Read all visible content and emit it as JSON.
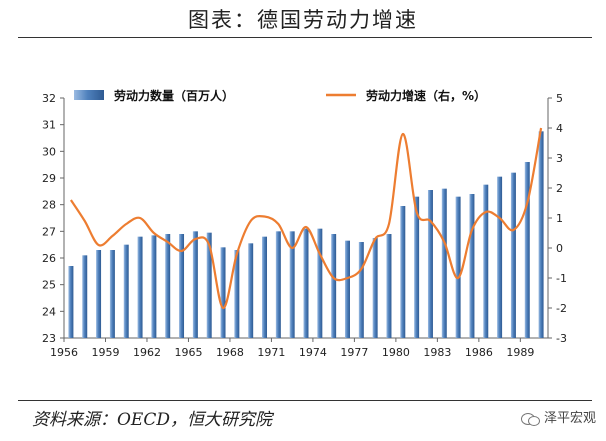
{
  "title": "图表：德国劳动力增速",
  "source": "资料来源：OECD，恒大研究院",
  "watermark": "泽平宏观",
  "chart_data": {
    "type": "bar+line",
    "years": [
      1956,
      1957,
      1958,
      1959,
      1960,
      1961,
      1962,
      1963,
      1964,
      1965,
      1966,
      1967,
      1968,
      1969,
      1970,
      1971,
      1972,
      1973,
      1974,
      1975,
      1976,
      1977,
      1978,
      1979,
      1980,
      1981,
      1982,
      1983,
      1984,
      1985,
      1986,
      1987,
      1988,
      1989,
      1990
    ],
    "x_tick_labels": [
      "1956",
      "1959",
      "1962",
      "1965",
      "1968",
      "1971",
      "1974",
      "1977",
      "1980",
      "1983",
      "1986",
      "1989"
    ],
    "series": [
      {
        "name": "劳动力数量（百万人）",
        "type": "bar",
        "axis": "left",
        "color": "#4f81bd",
        "values": [
          25.7,
          26.1,
          26.3,
          26.3,
          26.5,
          26.8,
          26.85,
          26.9,
          26.9,
          27.0,
          26.95,
          26.4,
          26.3,
          26.55,
          26.8,
          27.0,
          27.0,
          27.1,
          27.1,
          26.9,
          26.65,
          26.6,
          26.75,
          26.9,
          27.95,
          28.3,
          28.55,
          28.6,
          28.3,
          28.4,
          28.75,
          29.05,
          29.2,
          29.6,
          30.75
        ]
      },
      {
        "name": "劳动力增速（右，%）",
        "type": "line",
        "axis": "right",
        "color": "#ed7d31",
        "values": [
          1.6,
          0.9,
          0.1,
          0.4,
          0.8,
          1.0,
          0.5,
          0.2,
          -0.1,
          0.3,
          0.1,
          -2.0,
          -0.2,
          0.9,
          1.05,
          0.8,
          0.0,
          0.7,
          -0.2,
          -1.0,
          -1.0,
          -0.7,
          0.3,
          0.8,
          3.8,
          1.2,
          0.9,
          0.2,
          -1.0,
          0.6,
          1.2,
          1.0,
          0.6,
          1.5,
          4.0
        ]
      }
    ],
    "y_left": {
      "min": 23,
      "max": 32,
      "step": 1
    },
    "y_right": {
      "min": -3,
      "max": 5,
      "step": 1
    },
    "legend": "top"
  }
}
